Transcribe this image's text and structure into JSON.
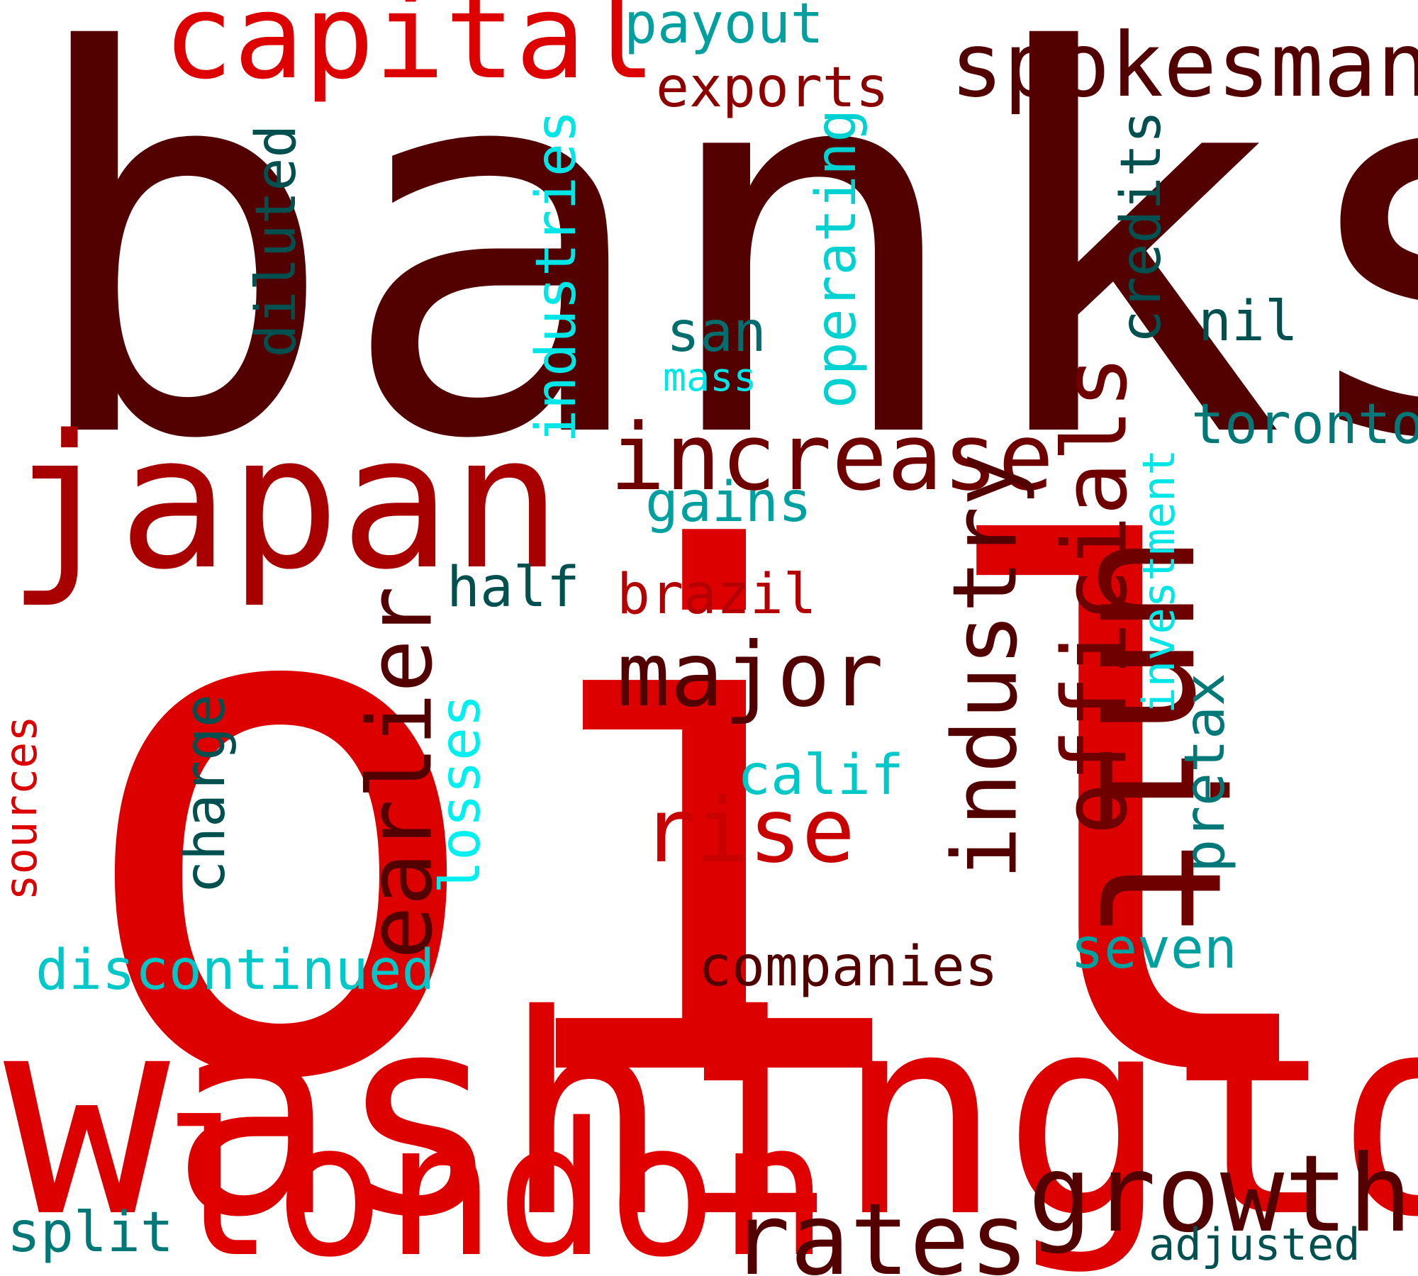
{
  "words": {
    "banks": {
      "text": "banks",
      "color": "#520000"
    },
    "oil": {
      "text": "oil",
      "color": "#dc0000"
    },
    "washington": {
      "text": "washington",
      "color": "#dc0000"
    },
    "japan": {
      "text": "japan",
      "color": "#a80000"
    },
    "london": {
      "text": "london",
      "color": "#e10000"
    },
    "unit": {
      "text": "unit",
      "color": "#6e0000"
    },
    "capital": {
      "text": "capital",
      "color": "#dc0000"
    },
    "spokesman": {
      "text": "spokesman",
      "color": "#520000"
    },
    "increase": {
      "text": "increase",
      "color": "#6e0000"
    },
    "industry": {
      "text": "industry",
      "color": "#520000"
    },
    "officials": {
      "text": "officials",
      "color": "#6e0000"
    },
    "earlier": {
      "text": "earlier",
      "color": "#520000"
    },
    "growth": {
      "text": "growth",
      "color": "#520000"
    },
    "rates": {
      "text": "rates",
      "color": "#520000"
    },
    "major": {
      "text": "major",
      "color": "#520000"
    },
    "rise": {
      "text": "rise",
      "color": "#c80000"
    },
    "payout": {
      "text": "payout",
      "color": "#00a0a0"
    },
    "exports": {
      "text": "exports",
      "color": "#8c0000"
    },
    "industries": {
      "text": "industries",
      "color": "#00e6e6"
    },
    "operating": {
      "text": "operating",
      "color": "#00d2d2"
    },
    "diluted": {
      "text": "diluted",
      "color": "#005050"
    },
    "credits": {
      "text": "credits",
      "color": "#005050"
    },
    "san": {
      "text": "san",
      "color": "#006e6e"
    },
    "mass": {
      "text": "mass",
      "color": "#00e6e6"
    },
    "nil": {
      "text": "nil",
      "color": "#005050"
    },
    "toronto": {
      "text": "toronto",
      "color": "#007878"
    },
    "gains": {
      "text": "gains",
      "color": "#00a0a0"
    },
    "investment": {
      "text": "investment",
      "color": "#00e6e6"
    },
    "half": {
      "text": "half",
      "color": "#005050"
    },
    "brazil": {
      "text": "brazil",
      "color": "#b40000"
    },
    "pretax": {
      "text": "pretax",
      "color": "#007878"
    },
    "calif": {
      "text": "calif",
      "color": "#00c8c8"
    },
    "charge": {
      "text": "charge",
      "color": "#005050"
    },
    "losses": {
      "text": "losses",
      "color": "#00f0f0"
    },
    "sources": {
      "text": "sources",
      "color": "#dc0000"
    },
    "discontinued": {
      "text": "discontinued",
      "color": "#00c8c8"
    },
    "companies": {
      "text": "companies",
      "color": "#520000"
    },
    "seven": {
      "text": "seven",
      "color": "#00a0a0"
    },
    "split": {
      "text": "split",
      "color": "#007878"
    },
    "adjusted": {
      "text": "adjusted",
      "color": "#005050"
    }
  }
}
